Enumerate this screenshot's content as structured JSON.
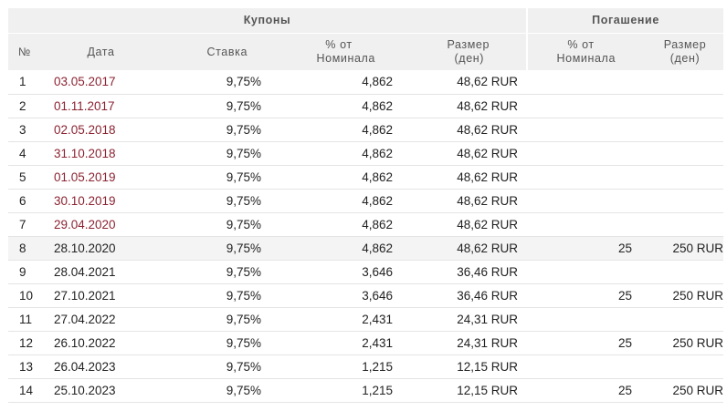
{
  "header": {
    "coupons_group": "Купоны",
    "redemption_group": "Погашение",
    "columns": {
      "num": "№",
      "date": "Дата",
      "rate": "Ставка",
      "pct_line1": "% от",
      "pct_line2": "Номинала",
      "size_line1": "Размер",
      "size_line2": "(ден)",
      "rpct_line1": "% от",
      "rpct_line2": "Номинала",
      "rsize_line1": "Размер",
      "rsize_line2": "(ден)"
    }
  },
  "colors": {
    "past_date": "#8b2331",
    "header_bg": "#f0f0f0",
    "highlight_row_bg": "#f4f4f4"
  },
  "rows": [
    {
      "num": "1",
      "date": "03.05.2017",
      "past": true,
      "rate": "9,75%",
      "pct": "4,862",
      "size": "48,62 RUR",
      "rpct": "",
      "rsize": ""
    },
    {
      "num": "2",
      "date": "01.11.2017",
      "past": true,
      "rate": "9,75%",
      "pct": "4,862",
      "size": "48,62 RUR",
      "rpct": "",
      "rsize": ""
    },
    {
      "num": "3",
      "date": "02.05.2018",
      "past": true,
      "rate": "9,75%",
      "pct": "4,862",
      "size": "48,62 RUR",
      "rpct": "",
      "rsize": ""
    },
    {
      "num": "4",
      "date": "31.10.2018",
      "past": true,
      "rate": "9,75%",
      "pct": "4,862",
      "size": "48,62 RUR",
      "rpct": "",
      "rsize": ""
    },
    {
      "num": "5",
      "date": "01.05.2019",
      "past": true,
      "rate": "9,75%",
      "pct": "4,862",
      "size": "48,62 RUR",
      "rpct": "",
      "rsize": ""
    },
    {
      "num": "6",
      "date": "30.10.2019",
      "past": true,
      "rate": "9,75%",
      "pct": "4,862",
      "size": "48,62 RUR",
      "rpct": "",
      "rsize": ""
    },
    {
      "num": "7",
      "date": "29.04.2020",
      "past": true,
      "rate": "9,75%",
      "pct": "4,862",
      "size": "48,62 RUR",
      "rpct": "",
      "rsize": ""
    },
    {
      "num": "8",
      "date": "28.10.2020",
      "past": false,
      "highlight": true,
      "rate": "9,75%",
      "pct": "4,862",
      "size": "48,62 RUR",
      "rpct": "25",
      "rsize": "250 RUR"
    },
    {
      "num": "9",
      "date": "28.04.2021",
      "past": false,
      "rate": "9,75%",
      "pct": "3,646",
      "size": "36,46 RUR",
      "rpct": "",
      "rsize": ""
    },
    {
      "num": "10",
      "date": "27.10.2021",
      "past": false,
      "rate": "9,75%",
      "pct": "3,646",
      "size": "36,46 RUR",
      "rpct": "25",
      "rsize": "250 RUR"
    },
    {
      "num": "11",
      "date": "27.04.2022",
      "past": false,
      "rate": "9,75%",
      "pct": "2,431",
      "size": "24,31 RUR",
      "rpct": "",
      "rsize": ""
    },
    {
      "num": "12",
      "date": "26.10.2022",
      "past": false,
      "rate": "9,75%",
      "pct": "2,431",
      "size": "24,31 RUR",
      "rpct": "25",
      "rsize": "250 RUR"
    },
    {
      "num": "13",
      "date": "26.04.2023",
      "past": false,
      "rate": "9,75%",
      "pct": "1,215",
      "size": "12,15 RUR",
      "rpct": "",
      "rsize": ""
    },
    {
      "num": "14",
      "date": "25.10.2023",
      "past": false,
      "rate": "9,75%",
      "pct": "1,215",
      "size": "12,15 RUR",
      "rpct": "25",
      "rsize": "250 RUR"
    }
  ]
}
